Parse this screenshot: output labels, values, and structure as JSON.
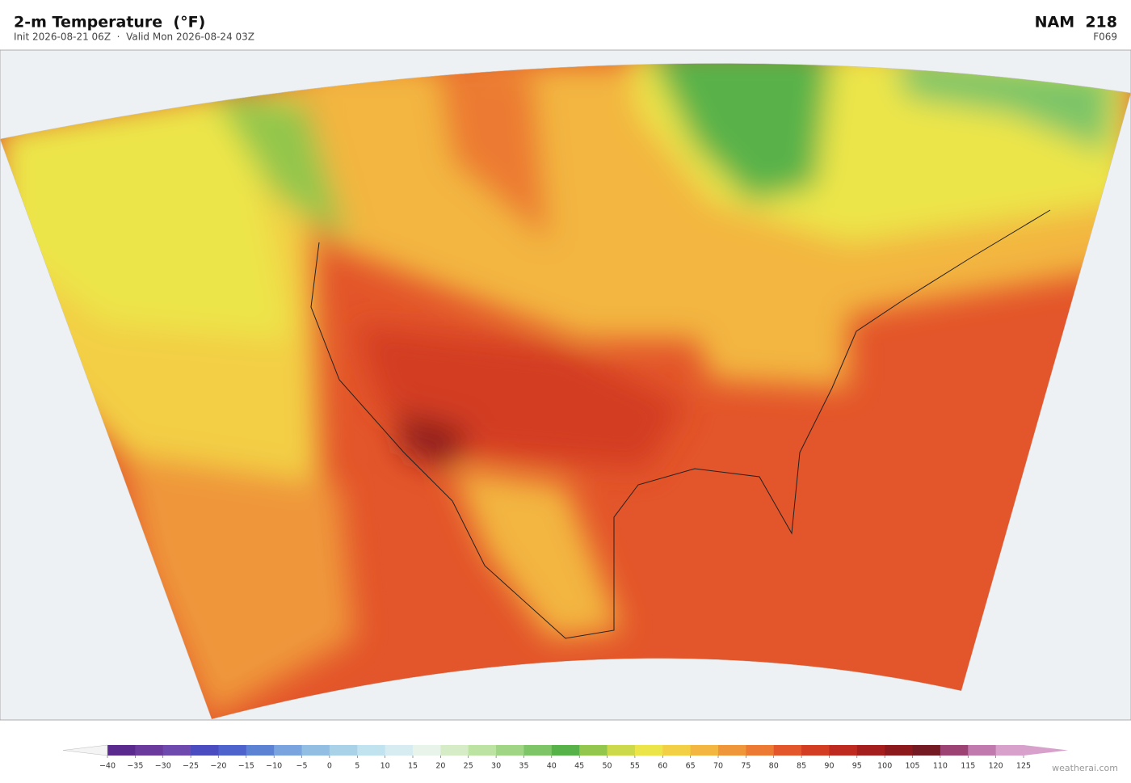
{
  "header": {
    "title": "2-m Temperature  (°F)",
    "subtitle": "Init 2026-08-21 06Z  ·  Valid Mon 2026-08-24 03Z",
    "model": "NAM  218",
    "forecast_hour": "F069"
  },
  "colorbar": {
    "range": [
      -40,
      125
    ],
    "ticks": [
      {
        "value": -40,
        "label": "−40"
      },
      {
        "value": -35,
        "label": "−35"
      },
      {
        "value": -30,
        "label": "−30"
      },
      {
        "value": -25,
        "label": "−25"
      },
      {
        "value": -20,
        "label": "−20"
      },
      {
        "value": -15,
        "label": "−15"
      },
      {
        "value": -10,
        "label": "−10"
      },
      {
        "value": -5,
        "label": "−5"
      },
      0,
      5,
      10,
      15,
      20,
      25,
      30,
      35,
      40,
      45,
      50,
      55,
      60,
      65,
      70,
      75,
      80,
      85,
      90,
      95,
      100,
      105,
      110,
      115,
      120,
      125
    ],
    "colors": [
      "#5b2a8e",
      "#6a3a9c",
      "#6f4aae",
      "#4b4cbf",
      "#4f63cc",
      "#5c82d3",
      "#79a4dd",
      "#93bee3",
      "#a9d2e9",
      "#c1e2ef",
      "#d6ecf1",
      "#e8f4ea",
      "#d6ecc6",
      "#bde3a2",
      "#9fd584",
      "#7dc567",
      "#58b24a",
      "#93c64c",
      "#cbd94a",
      "#ece54a",
      "#f3cf45",
      "#f3b640",
      "#ef963a",
      "#ec7a33",
      "#e3552a",
      "#d33d22",
      "#bf2a20",
      "#a51e1e",
      "#8c1a1c",
      "#741a22",
      "#9c4374",
      "#c07aad",
      "#d7a1cc"
    ],
    "under_color": "#f4f4f4",
    "over_color": "#d7a1cc"
  },
  "watermark": "weatherai.com"
}
